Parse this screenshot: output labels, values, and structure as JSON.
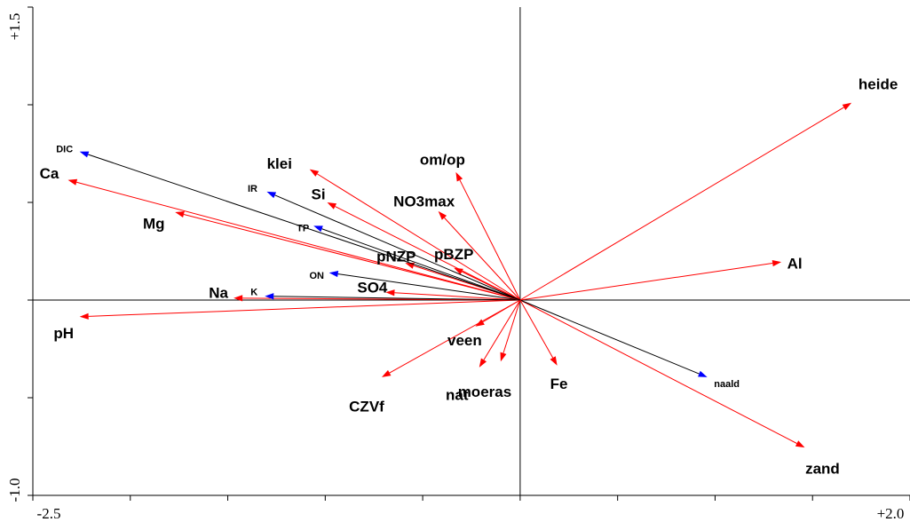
{
  "chart_data": {
    "type": "biplot",
    "xlim": [
      -2.5,
      2.0
    ],
    "ylim": [
      -1.0,
      1.5
    ],
    "tick_labels": {
      "x_min": "-2.5",
      "x_max": "+2.0",
      "y_min": "-1.0",
      "y_max": "+1.5"
    },
    "colors": {
      "environmental_arrow": "#ff0000",
      "species_line": "#000000",
      "species_arrowhead": "#0000ff"
    },
    "vectors": [
      {
        "label": "heide",
        "x": 1.7,
        "y": 1.01,
        "kind": "environmental"
      },
      {
        "label": "Al",
        "x": 1.34,
        "y": 0.195,
        "kind": "environmental"
      },
      {
        "label": "zand",
        "x": 1.46,
        "y": -0.755,
        "kind": "environmental"
      },
      {
        "label": "naald",
        "x": 0.96,
        "y": -0.395,
        "kind": "species"
      },
      {
        "label": "Fe",
        "x": 0.19,
        "y": -0.335,
        "kind": "environmental"
      },
      {
        "label": "moeras",
        "x": -0.1,
        "y": -0.315,
        "kind": "environmental"
      },
      {
        "label": "nat",
        "x": -0.21,
        "y": -0.345,
        "kind": "environmental"
      },
      {
        "label": "veen",
        "x": -0.23,
        "y": -0.135,
        "kind": "environmental"
      },
      {
        "label": "CZVf",
        "x": -0.71,
        "y": -0.395,
        "kind": "environmental"
      },
      {
        "label": "pH",
        "x": -2.26,
        "y": -0.085,
        "kind": "environmental"
      },
      {
        "label": "SO4",
        "x": -0.69,
        "y": 0.04,
        "kind": "environmental"
      },
      {
        "label": "Na",
        "x": -1.47,
        "y": 0.01,
        "kind": "environmental"
      },
      {
        "label": "K",
        "x": -1.31,
        "y": 0.02,
        "kind": "species"
      },
      {
        "label": "ON",
        "x": -0.98,
        "y": 0.14,
        "kind": "species"
      },
      {
        "label": "pNZP",
        "x": -0.59,
        "y": 0.19,
        "kind": "environmental"
      },
      {
        "label": "pBZP",
        "x": -0.34,
        "y": 0.165,
        "kind": "environmental"
      },
      {
        "label": "NO3max",
        "x": -0.42,
        "y": 0.455,
        "kind": "environmental"
      },
      {
        "label": "om/op",
        "x": -0.33,
        "y": 0.655,
        "kind": "environmental"
      },
      {
        "label": "klei",
        "x": -1.08,
        "y": 0.67,
        "kind": "environmental"
      },
      {
        "label": "Si",
        "x": -0.99,
        "y": 0.5,
        "kind": "environmental"
      },
      {
        "label": "TP",
        "x": -1.06,
        "y": 0.38,
        "kind": "species"
      },
      {
        "label": "IR",
        "x": -1.3,
        "y": 0.555,
        "kind": "species"
      },
      {
        "label": "Mg",
        "x": -1.77,
        "y": 0.45,
        "kind": "environmental"
      },
      {
        "label": "Ca",
        "x": -2.32,
        "y": 0.615,
        "kind": "environmental"
      },
      {
        "label": "DIC",
        "x": -2.26,
        "y": 0.76,
        "kind": "species"
      }
    ]
  }
}
